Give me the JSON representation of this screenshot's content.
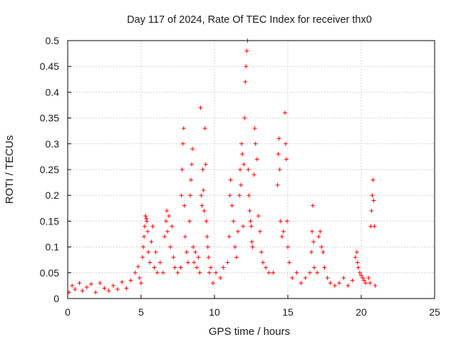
{
  "chart_data": {
    "type": "scatter",
    "title": "Day 117 of 2024, Rate Of TEC Index for receiver thx0",
    "xlabel": "GPS time / hours",
    "ylabel": "ROTI / TECUs",
    "xlim": [
      0,
      25
    ],
    "ylim": [
      0,
      0.5
    ],
    "xticks": [
      0,
      5,
      10,
      15,
      20,
      25
    ],
    "yticks": [
      0,
      0.05,
      0.1,
      0.15,
      0.2,
      0.25,
      0.3,
      0.35,
      0.4,
      0.45,
      0.5
    ],
    "xtick_labels": [
      "0",
      "5",
      "10",
      "15",
      "20",
      "25"
    ],
    "ytick_labels": [
      "0",
      "0.05",
      "0.1",
      "0.15",
      "0.2",
      "0.25",
      "0.3",
      "0.35",
      "0.4",
      "0.45",
      "0.5"
    ],
    "grid": true,
    "marker": "+",
    "color": "#ff0000",
    "series": [
      {
        "name": "ROTI",
        "points": [
          [
            0.1,
            0.012
          ],
          [
            0.3,
            0.025
          ],
          [
            0.5,
            0.018
          ],
          [
            0.8,
            0.03
          ],
          [
            1.0,
            0.015
          ],
          [
            1.3,
            0.022
          ],
          [
            1.6,
            0.028
          ],
          [
            1.9,
            0.012
          ],
          [
            2.2,
            0.03
          ],
          [
            2.5,
            0.02
          ],
          [
            2.8,
            0.015
          ],
          [
            3.1,
            0.025
          ],
          [
            3.4,
            0.018
          ],
          [
            3.7,
            0.032
          ],
          [
            4.0,
            0.02
          ],
          [
            4.3,
            0.035
          ],
          [
            4.6,
            0.05
          ],
          [
            4.8,
            0.062
          ],
          [
            4.9,
            0.04
          ],
          [
            5.0,
            0.03
          ],
          [
            5.1,
            0.08
          ],
          [
            5.15,
            0.1
          ],
          [
            5.2,
            0.12
          ],
          [
            5.25,
            0.14
          ],
          [
            5.3,
            0.16
          ],
          [
            5.35,
            0.155
          ],
          [
            5.4,
            0.15
          ],
          [
            5.45,
            0.13
          ],
          [
            5.5,
            0.09
          ],
          [
            5.6,
            0.07
          ],
          [
            5.7,
            0.11
          ],
          [
            5.8,
            0.14
          ],
          [
            5.9,
            0.06
          ],
          [
            6.0,
            0.09
          ],
          [
            6.1,
            0.05
          ],
          [
            6.3,
            0.07
          ],
          [
            6.5,
            0.05
          ],
          [
            6.6,
            0.12
          ],
          [
            6.7,
            0.15
          ],
          [
            6.75,
            0.17
          ],
          [
            6.8,
            0.13
          ],
          [
            6.9,
            0.16
          ],
          [
            7.0,
            0.1
          ],
          [
            7.1,
            0.14
          ],
          [
            7.2,
            0.08
          ],
          [
            7.3,
            0.06
          ],
          [
            7.5,
            0.05
          ],
          [
            7.7,
            0.06
          ],
          [
            7.75,
            0.2
          ],
          [
            7.8,
            0.25
          ],
          [
            7.85,
            0.3
          ],
          [
            7.9,
            0.33
          ],
          [
            7.95,
            0.18
          ],
          [
            8.0,
            0.12
          ],
          [
            8.1,
            0.09
          ],
          [
            8.2,
            0.07
          ],
          [
            8.3,
            0.15
          ],
          [
            8.35,
            0.2
          ],
          [
            8.4,
            0.23
          ],
          [
            8.45,
            0.26
          ],
          [
            8.5,
            0.29
          ],
          [
            8.55,
            0.1
          ],
          [
            8.6,
            0.07
          ],
          [
            8.7,
            0.09
          ],
          [
            8.8,
            0.06
          ],
          [
            8.9,
            0.08
          ],
          [
            9.0,
            0.05
          ],
          [
            9.05,
            0.37
          ],
          [
            9.1,
            0.2
          ],
          [
            9.15,
            0.18
          ],
          [
            9.2,
            0.25
          ],
          [
            9.25,
            0.21
          ],
          [
            9.3,
            0.17
          ],
          [
            9.35,
            0.33
          ],
          [
            9.4,
            0.26
          ],
          [
            9.45,
            0.15
          ],
          [
            9.5,
            0.12
          ],
          [
            9.55,
            0.1
          ],
          [
            9.6,
            0.08
          ],
          [
            9.65,
            0.05
          ],
          [
            9.75,
            0.06
          ],
          [
            9.9,
            0.03
          ],
          [
            10.1,
            0.05
          ],
          [
            10.4,
            0.04
          ],
          [
            10.6,
            0.06
          ],
          [
            10.9,
            0.07
          ],
          [
            11.0,
            0.12
          ],
          [
            11.05,
            0.2
          ],
          [
            11.1,
            0.23
          ],
          [
            11.2,
            0.18
          ],
          [
            11.3,
            0.15
          ],
          [
            11.4,
            0.1
          ],
          [
            11.5,
            0.08
          ],
          [
            11.6,
            0.13
          ],
          [
            11.7,
            0.2
          ],
          [
            11.75,
            0.25
          ],
          [
            11.8,
            0.22
          ],
          [
            11.85,
            0.3
          ],
          [
            11.9,
            0.28
          ],
          [
            11.95,
            0.14
          ],
          [
            12.0,
            0.26
          ],
          [
            12.05,
            0.35
          ],
          [
            12.1,
            0.42
          ],
          [
            12.15,
            0.45
          ],
          [
            12.2,
            0.48
          ],
          [
            12.25,
            0.5
          ],
          [
            12.3,
            0.25
          ],
          [
            12.35,
            0.2
          ],
          [
            12.4,
            0.17
          ],
          [
            12.45,
            0.15
          ],
          [
            12.5,
            0.14
          ],
          [
            12.55,
            0.11
          ],
          [
            12.6,
            0.1
          ],
          [
            12.7,
            0.24
          ],
          [
            12.75,
            0.33
          ],
          [
            12.8,
            0.3
          ],
          [
            12.9,
            0.27
          ],
          [
            13.0,
            0.16
          ],
          [
            13.1,
            0.13
          ],
          [
            13.2,
            0.09
          ],
          [
            13.3,
            0.07
          ],
          [
            13.5,
            0.06
          ],
          [
            13.7,
            0.05
          ],
          [
            14.0,
            0.05
          ],
          [
            14.3,
            0.22
          ],
          [
            14.35,
            0.28
          ],
          [
            14.4,
            0.31
          ],
          [
            14.45,
            0.25
          ],
          [
            14.5,
            0.15
          ],
          [
            14.6,
            0.12
          ],
          [
            14.7,
            0.13
          ],
          [
            14.8,
            0.36
          ],
          [
            14.85,
            0.3
          ],
          [
            14.9,
            0.27
          ],
          [
            14.95,
            0.15
          ],
          [
            15.0,
            0.1
          ],
          [
            15.1,
            0.07
          ],
          [
            15.3,
            0.04
          ],
          [
            15.6,
            0.05
          ],
          [
            15.9,
            0.03
          ],
          [
            16.2,
            0.04
          ],
          [
            16.5,
            0.05
          ],
          [
            16.6,
            0.09
          ],
          [
            16.65,
            0.13
          ],
          [
            16.7,
            0.18
          ],
          [
            16.75,
            0.11
          ],
          [
            16.8,
            0.06
          ],
          [
            17.0,
            0.05
          ],
          [
            17.1,
            0.12
          ],
          [
            17.2,
            0.13
          ],
          [
            17.3,
            0.1
          ],
          [
            17.4,
            0.09
          ],
          [
            17.5,
            0.06
          ],
          [
            17.7,
            0.04
          ],
          [
            17.9,
            0.03
          ],
          [
            18.2,
            0.025
          ],
          [
            18.5,
            0.03
          ],
          [
            18.8,
            0.04
          ],
          [
            19.1,
            0.025
          ],
          [
            19.4,
            0.035
          ],
          [
            19.6,
            0.08
          ],
          [
            19.7,
            0.09
          ],
          [
            19.75,
            0.07
          ],
          [
            19.8,
            0.06
          ],
          [
            19.9,
            0.05
          ],
          [
            20.0,
            0.045
          ],
          [
            20.1,
            0.04
          ],
          [
            20.2,
            0.035
          ],
          [
            20.3,
            0.03
          ],
          [
            20.5,
            0.04
          ],
          [
            20.6,
            0.03
          ],
          [
            20.65,
            0.14
          ],
          [
            20.7,
            0.17
          ],
          [
            20.75,
            0.2
          ],
          [
            20.8,
            0.23
          ],
          [
            20.85,
            0.19
          ],
          [
            20.9,
            0.14
          ],
          [
            20.95,
            0.025
          ]
        ]
      }
    ]
  }
}
